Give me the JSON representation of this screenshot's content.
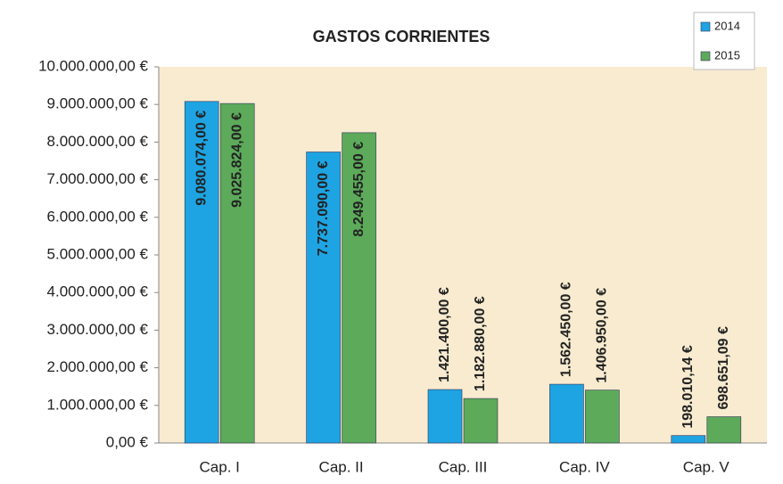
{
  "chart_data": {
    "type": "bar",
    "title": "GASTOS CORRIENTES",
    "categories": [
      "Cap. I",
      "Cap. II",
      "Cap. III",
      "Cap. IV",
      "Cap. V"
    ],
    "series": [
      {
        "name": "2014",
        "color": "#1ea4e2",
        "values": [
          9080074,
          7737090,
          1421400,
          1562450,
          198010.14
        ],
        "value_labels": [
          "9.080.074,00 €",
          "7.737.090,00 €",
          "1.421.400,00 €",
          "1.562.450,00 €",
          "198.010,14 €"
        ]
      },
      {
        "name": "2015",
        "color": "#5caa5a",
        "values": [
          9025824,
          8249455,
          1182880,
          1406950,
          698651.09
        ],
        "value_labels": [
          "9.025.824,00 €",
          "8.249.455,00 €",
          "1.182.880,00 €",
          "1.406.950,00 €",
          "698.651,09 €"
        ]
      }
    ],
    "ylim": [
      0,
      10000000
    ],
    "yticks": [
      {
        "value": 0,
        "label": "0,00 €"
      },
      {
        "value": 1000000,
        "label": "1.000.000,00 €"
      },
      {
        "value": 2000000,
        "label": "2.000.000,00 €"
      },
      {
        "value": 3000000,
        "label": "3.000.000,00 €"
      },
      {
        "value": 4000000,
        "label": "4.000.000,00 €"
      },
      {
        "value": 5000000,
        "label": "5.000.000,00 €"
      },
      {
        "value": 6000000,
        "label": "6.000.000,00 €"
      },
      {
        "value": 7000000,
        "label": "7.000.000,00 €"
      },
      {
        "value": 8000000,
        "label": "8.000.000,00 €"
      },
      {
        "value": 9000000,
        "label": "9.000.000,00 €"
      },
      {
        "value": 10000000,
        "label": "10.000.000,00 €"
      }
    ],
    "legend": "top-right"
  }
}
